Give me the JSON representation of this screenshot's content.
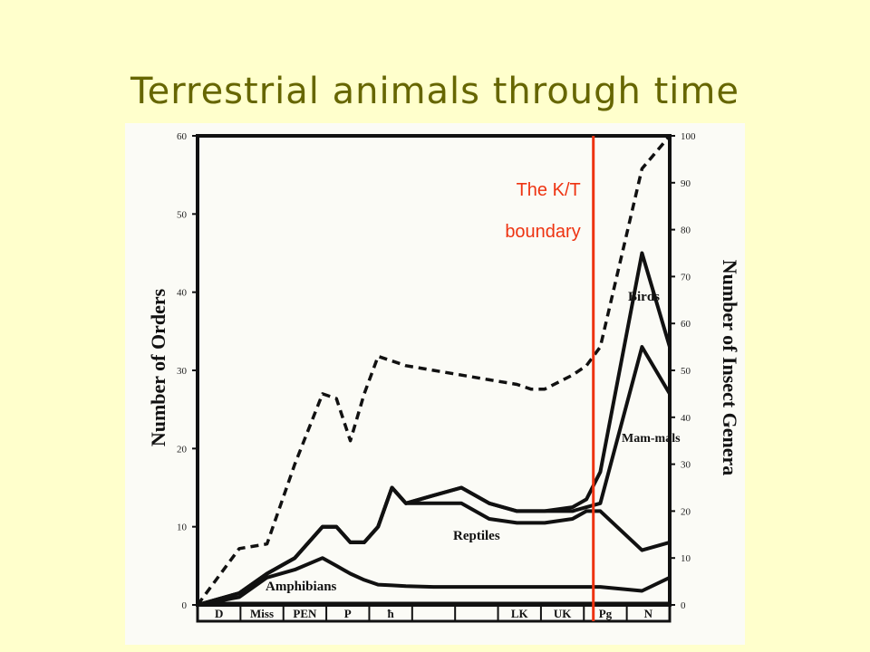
{
  "slide": {
    "title": "Terrestrial animals through time"
  },
  "annotation": {
    "line1": "The K/T",
    "line2": "boundary",
    "color": "#ee3311"
  },
  "chart_data": {
    "type": "line",
    "ylabel_left": "Number of Orders",
    "ylabel_right": "Number of Insect Genera",
    "left_axis": {
      "ticks": [
        "0",
        "10",
        "20",
        "30",
        "40",
        "50",
        "60"
      ],
      "ylim": [
        0,
        60
      ]
    },
    "right_axis": {
      "ticks": [
        "0",
        "10",
        "20",
        "30",
        "40",
        "50",
        "60",
        "70",
        "80",
        "90",
        "100"
      ],
      "ylim": [
        0,
        100
      ]
    },
    "periods": [
      "D",
      "Miss",
      "PEN",
      "P",
      "ħ",
      "",
      "",
      "LK",
      "UK",
      "Pg",
      "N"
    ],
    "x": [
      0,
      3,
      5,
      7,
      9,
      10,
      11,
      12,
      13,
      14,
      15,
      17,
      19,
      21,
      23,
      24,
      25,
      27,
      28,
      29,
      32,
      34
    ],
    "series": [
      {
        "name": "Amphibians",
        "values": [
          0,
          1.0,
          3.5,
          4.5,
          6,
          5.0,
          4.0,
          3.2,
          2.6,
          2.5,
          2.4,
          2.3,
          2.3,
          2.3,
          2.3,
          2.3,
          2.3,
          2.3,
          2.3,
          2.3,
          1.8,
          3.5
        ]
      },
      {
        "name": "Reptiles",
        "values": [
          0,
          1.5,
          4,
          6,
          10,
          10,
          8,
          8,
          10,
          15,
          13,
          13,
          13,
          11,
          10.5,
          10.5,
          10.5,
          11,
          12,
          12,
          7,
          8
        ]
      },
      {
        "name": "Mam-mals",
        "values": [
          0,
          1.5,
          4,
          6,
          10,
          10,
          8,
          8,
          10,
          15,
          13,
          14,
          15,
          13,
          12,
          12,
          12,
          12,
          12.5,
          13,
          33,
          27
        ]
      },
      {
        "name": "Birds",
        "values": [
          0,
          1.5,
          4,
          6,
          10,
          10,
          8,
          8,
          10,
          15,
          13,
          14,
          15,
          13,
          12,
          12,
          12,
          12.5,
          13.5,
          17,
          45,
          33
        ]
      },
      {
        "name": "Number of Insect Genera",
        "axis": "right",
        "values": [
          0,
          12,
          13,
          30,
          45,
          44,
          35,
          45,
          53,
          52,
          51,
          50,
          49,
          48,
          47,
          46,
          46,
          49,
          51,
          55,
          93,
          100
        ]
      }
    ],
    "kt_boundary_x": 28.5
  }
}
